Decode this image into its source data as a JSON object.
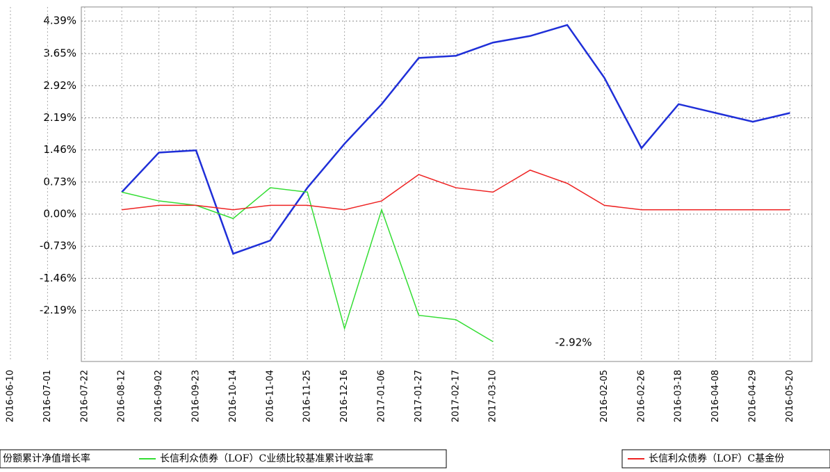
{
  "chart_data": {
    "type": "line",
    "categories": [
      "2016-06-10",
      "2016-07-01",
      "2016-07-22",
      "2016-08-12",
      "2016-09-02",
      "2016-09-23",
      "2016-10-14",
      "2016-11-04",
      "2016-11-25",
      "2016-12-16",
      "2017-01-06",
      "2017-01-27",
      "2017-02-17",
      "2017-03-10",
      null,
      null,
      "2016-02-05",
      "2016-02-26",
      "2016-03-18",
      "2016-04-08",
      "2016-04-29",
      "2016-05-20"
    ],
    "series": [
      {
        "name": "份额累计净值增长率",
        "color": "#1f2fd8",
        "values": [
          null,
          null,
          null,
          0.5,
          1.4,
          1.45,
          -0.9,
          -0.6,
          0.6,
          1.6,
          2.5,
          3.55,
          3.6,
          3.9,
          4.05,
          4.3,
          3.1,
          1.5,
          2.5,
          2.3,
          2.1,
          2.3
        ]
      },
      {
        "name": "长信利众债券（LOF）C业绩比较基准累计收益率",
        "color": "#33dd33",
        "values": [
          null,
          null,
          null,
          0.5,
          0.3,
          0.2,
          -0.1,
          0.6,
          0.5,
          -2.6,
          0.1,
          -2.3,
          -2.4,
          -2.9,
          null,
          null,
          null,
          null,
          null,
          null,
          null,
          null
        ]
      },
      {
        "name": "长信利众债券（LOF）C基金份",
        "color": "#ee2222",
        "values": [
          null,
          null,
          null,
          0.1,
          0.2,
          0.2,
          0.1,
          0.2,
          0.2,
          0.1,
          0.3,
          0.9,
          0.6,
          0.5,
          1.0,
          0.7,
          0.2,
          0.1,
          0.1,
          0.1,
          0.1,
          0.1
        ]
      }
    ],
    "ylim": [
      -3.35,
      4.71
    ],
    "yticks": [
      {
        "value": 4.39,
        "label": "4.39%"
      },
      {
        "value": 3.65,
        "label": "3.65%"
      },
      {
        "value": 2.92,
        "label": "2.92%"
      },
      {
        "value": 2.19,
        "label": "2.19%"
      },
      {
        "value": 1.46,
        "label": "1.46%"
      },
      {
        "value": 0.73,
        "label": "0.73%"
      },
      {
        "value": 0,
        "label": "0.00%"
      },
      {
        "value": -0.73,
        "label": "-0.73%"
      },
      {
        "value": -1.46,
        "label": "-1.46%"
      },
      {
        "value": -2.19,
        "label": "-2.19%"
      }
    ],
    "annotation": "-2.92%",
    "grid": true
  }
}
